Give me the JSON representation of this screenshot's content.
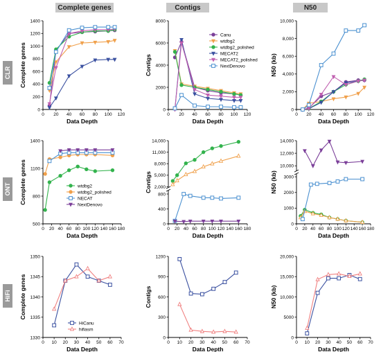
{
  "headers": {
    "col1": "Complete genes",
    "col2": "Contigs",
    "col3": "N50"
  },
  "rows": {
    "clr": "CLR",
    "ont": "ONT",
    "hifi": "HiFi"
  },
  "colors": {
    "Canu": "#7b3f99",
    "wtdbg2": "#f0a04b",
    "wtdbg2_polished": "#33b34d",
    "MECAT2": "#3a50a0",
    "MECAT2_polished": "#c060b0",
    "NextDenovo": "#4a90d0",
    "NECAT": "#4a90d0",
    "HiCanu": "#3a50a0",
    "hifiasm": "#f08080"
  },
  "chart_data": [
    {
      "id": "clr-genes",
      "type": "line",
      "xlabel": "Data Depth",
      "ylabel": "Complete genes",
      "xlim": [
        0,
        120
      ],
      "ylim": [
        0,
        1400
      ],
      "xticks": [
        0,
        20,
        40,
        60,
        80,
        100,
        120
      ],
      "yticks": [
        0,
        200,
        400,
        600,
        800,
        1000,
        1200,
        1400
      ],
      "series": [
        {
          "name": "Canu",
          "x": [
            10,
            20,
            40,
            60,
            80,
            100,
            110
          ],
          "y": [
            60,
            930,
            1200,
            1220,
            1230,
            1240,
            1250
          ],
          "marker": "circle"
        },
        {
          "name": "wtdbg2",
          "x": [
            10,
            20,
            40,
            60,
            80,
            100,
            110
          ],
          "y": [
            300,
            750,
            990,
            1050,
            1060,
            1070,
            1090
          ],
          "marker": "triangle-down"
        },
        {
          "name": "wtdbg2_polished",
          "x": [
            10,
            20,
            40,
            60,
            80,
            100,
            110
          ],
          "y": [
            420,
            950,
            1150,
            1220,
            1240,
            1240,
            1260
          ],
          "marker": "circle"
        },
        {
          "name": "MECAT2",
          "x": [
            10,
            20,
            40,
            60,
            80,
            100,
            110
          ],
          "y": [
            30,
            180,
            530,
            680,
            780,
            790,
            790
          ],
          "marker": "triangle-down"
        },
        {
          "name": "MECAT2_polished",
          "x": [
            10,
            20,
            40,
            60,
            80,
            100,
            110
          ],
          "y": [
            90,
            660,
            1200,
            1240,
            1260,
            1260,
            1270
          ],
          "marker": "triangle-down"
        },
        {
          "name": "NextDenovo",
          "x": [
            10,
            20,
            40,
            60,
            80,
            100,
            110
          ],
          "y": [
            340,
            910,
            1250,
            1290,
            1300,
            1300,
            1300
          ],
          "marker": "square"
        }
      ]
    },
    {
      "id": "clr-contigs",
      "type": "line",
      "xlabel": "Data Depth",
      "ylabel": "Contigs",
      "xlim": [
        0,
        120
      ],
      "ylim": [
        0,
        8000
      ],
      "xticks": [
        0,
        20,
        40,
        60,
        80,
        100,
        120
      ],
      "yticks": [
        0,
        2000,
        4000,
        6000,
        8000
      ],
      "legend": [
        "Canu",
        "wtdbg2",
        "wtdbg2_polished",
        "MECAT2",
        "MECAT2_polished",
        "NextDenovo"
      ],
      "series": [
        {
          "name": "Canu",
          "x": [
            10,
            20,
            40,
            60,
            80,
            100,
            110
          ],
          "y": [
            4700,
            6100,
            2000,
            1700,
            1500,
            1400,
            1300
          ],
          "marker": "circle"
        },
        {
          "name": "wtdbg2",
          "x": [
            10,
            20,
            40,
            60,
            80,
            100,
            110
          ],
          "y": [
            5300,
            2300,
            2100,
            1900,
            1700,
            1500,
            1400
          ],
          "marker": "triangle-down"
        },
        {
          "name": "wtdbg2_polished",
          "x": [
            10,
            20,
            40,
            60,
            80,
            100,
            110
          ],
          "y": [
            5200,
            2200,
            2000,
            1800,
            1600,
            1400,
            1300
          ],
          "marker": "circle"
        },
        {
          "name": "MECAT2",
          "x": [
            10,
            20,
            40,
            60,
            80,
            100,
            110
          ],
          "y": [
            30,
            6300,
            1400,
            1000,
            900,
            800,
            800
          ],
          "marker": "triangle-down"
        },
        {
          "name": "MECAT2_polished",
          "x": [
            10,
            20,
            40,
            60,
            80,
            100,
            110
          ],
          "y": [
            0,
            6000,
            1800,
            1300,
            1200,
            1100,
            1100
          ],
          "marker": "triangle-down"
        },
        {
          "name": "NextDenovo",
          "x": [
            10,
            20,
            40,
            60,
            80,
            100,
            110
          ],
          "y": [
            100,
            1300,
            350,
            250,
            250,
            200,
            200
          ],
          "marker": "square"
        }
      ]
    },
    {
      "id": "clr-n50",
      "type": "line",
      "xlabel": "Data Depth",
      "ylabel": "N50 (kb)",
      "xlim": [
        0,
        120
      ],
      "ylim": [
        0,
        10000
      ],
      "xticks": [
        0,
        20,
        40,
        60,
        80,
        100,
        120
      ],
      "yticks": [
        0,
        2000,
        4000,
        6000,
        8000,
        10000
      ],
      "ytick_labels": [
        "0",
        "2,000",
        "4,000",
        "6,000",
        "8,000",
        "10,000"
      ],
      "series": [
        {
          "name": "Canu",
          "x": [
            10,
            20,
            40,
            60,
            80,
            100,
            110
          ],
          "y": [
            0,
            150,
            1500,
            2000,
            3100,
            3300,
            3300
          ],
          "marker": "circle"
        },
        {
          "name": "wtdbg2",
          "x": [
            10,
            20,
            40,
            60,
            80,
            100,
            110
          ],
          "y": [
            0,
            700,
            900,
            1200,
            1400,
            1800,
            2500
          ],
          "marker": "triangle-down"
        },
        {
          "name": "wtdbg2_polished",
          "x": [
            10,
            20,
            40,
            60,
            80,
            100,
            110
          ],
          "y": [
            0,
            100,
            900,
            2000,
            2800,
            3200,
            3400
          ],
          "marker": "circle"
        },
        {
          "name": "MECAT2",
          "x": [
            10,
            20,
            40,
            60,
            80,
            100,
            110
          ],
          "y": [
            0,
            80,
            800,
            2000,
            3000,
            3200,
            3300
          ],
          "marker": "triangle-down"
        },
        {
          "name": "MECAT2_polished",
          "x": [
            10,
            20,
            40,
            60,
            80,
            100,
            110
          ],
          "y": [
            0,
            100,
            1700,
            3700,
            2800,
            3200,
            3300
          ],
          "marker": "triangle-down"
        },
        {
          "name": "NextDenovo",
          "x": [
            10,
            20,
            40,
            60,
            80,
            100,
            110
          ],
          "y": [
            0,
            500,
            5000,
            6300,
            8900,
            8900,
            9500
          ],
          "marker": "square"
        }
      ]
    },
    {
      "id": "ont-genes",
      "type": "line",
      "xlabel": "Data Depth",
      "ylabel": "Complete genes",
      "xlim": [
        0,
        180
      ],
      "ylim": [
        500,
        1400
      ],
      "xticks": [
        0,
        20,
        40,
        60,
        80,
        100,
        120,
        140,
        160,
        180
      ],
      "yticks": [
        500,
        800,
        1100,
        1400
      ],
      "legend": [
        "wtdbg2",
        "wtdbg2_polished",
        "NECAT",
        "NextDenovo"
      ],
      "series": [
        {
          "name": "wtdbg2",
          "x": [
            5,
            15,
            40,
            60,
            80,
            100,
            120,
            160
          ],
          "y": [
            650,
            950,
            1020,
            1080,
            1120,
            1090,
            1070,
            1080
          ],
          "marker": "circle",
          "color_key": "wtdbg2_polished"
        },
        {
          "name": "wtdbg2_polished",
          "x": [
            5,
            15,
            40,
            60,
            80,
            100,
            120,
            160
          ],
          "y": [
            1040,
            1200,
            1220,
            1240,
            1250,
            1250,
            1250,
            1240
          ],
          "marker": "circle",
          "color_key": "wtdbg2"
        },
        {
          "name": "NECAT",
          "x": [
            15,
            40,
            60,
            80,
            100,
            120,
            160
          ],
          "y": [
            1180,
            1260,
            1270,
            1270,
            1270,
            1270,
            1270
          ],
          "marker": "square"
        },
        {
          "name": "NextDenovo",
          "x": [
            40,
            60,
            80,
            100,
            120,
            160
          ],
          "y": [
            1290,
            1300,
            1300,
            1300,
            1300,
            1300
          ],
          "marker": "triangle-down",
          "color_key": "Canu"
        }
      ]
    },
    {
      "id": "ont-contigs",
      "type": "line",
      "xlabel": "Data Depth",
      "ylabel": "Contigs",
      "xlim": [
        0,
        180
      ],
      "ylim": [
        0,
        14000
      ],
      "xticks": [
        0,
        20,
        40,
        60,
        80,
        100,
        120,
        140,
        160,
        180
      ],
      "yticks_top": [
        2000,
        5000,
        8000,
        11000,
        14000
      ],
      "ytick_labels_top": [
        "2,000",
        "5,000",
        "8,000",
        "11,000",
        "14,000"
      ],
      "yticks_bottom": [
        0,
        400,
        800
      ],
      "axis_break": [
        900,
        1800
      ],
      "series": [
        {
          "name": "wtdbg2",
          "x": [
            10,
            20,
            40,
            60,
            80,
            100,
            120,
            160
          ],
          "y": [
            3500,
            5000,
            8100,
            9000,
            11000,
            12000,
            12600,
            13700
          ],
          "marker": "circle",
          "color_key": "wtdbg2_polished"
        },
        {
          "name": "wtdbg2_polished",
          "x": [
            10,
            20,
            40,
            60,
            80,
            100,
            120,
            160
          ],
          "y": [
            2600,
            3600,
            5200,
            6000,
            7200,
            8000,
            8700,
            10000
          ],
          "marker": "triangle-up",
          "color_key": "wtdbg2"
        },
        {
          "name": "NECAT",
          "x": [
            15,
            35,
            50,
            80,
            100,
            120,
            160
          ],
          "y": [
            80,
            800,
            750,
            700,
            700,
            680,
            700
          ],
          "marker": "square"
        },
        {
          "name": "NextDenovo",
          "x": [
            15,
            35,
            50,
            80,
            100,
            120,
            160
          ],
          "y": [
            70,
            60,
            70,
            70,
            70,
            70,
            70
          ],
          "marker": "triangle-down",
          "color_key": "Canu"
        }
      ]
    },
    {
      "id": "ont-n50",
      "type": "line",
      "xlabel": "Data Depth",
      "ylabel": "N50 (kb)",
      "xlim": [
        0,
        180
      ],
      "xticks": [
        0,
        20,
        40,
        60,
        80,
        100,
        120,
        140,
        160,
        180
      ],
      "yticks_top": [
        10000,
        12000,
        14000
      ],
      "ytick_labels_top": [
        "10,000",
        "12,000",
        "14,000"
      ],
      "yticks_bottom": [
        0,
        1000,
        2000,
        3000
      ],
      "ytick_labels_bottom": [
        "0",
        "1000",
        "2000",
        "3000"
      ],
      "axis_break": [
        3200,
        9200
      ],
      "series": [
        {
          "name": "wtdbg2",
          "x": [
            10,
            20,
            40,
            60,
            80,
            100,
            120,
            160
          ],
          "y": [
            500,
            900,
            700,
            600,
            400,
            300,
            200,
            100
          ],
          "marker": "circle",
          "color_key": "wtdbg2_polished"
        },
        {
          "name": "wtdbg2_polished",
          "x": [
            10,
            20,
            40,
            60,
            80,
            100,
            120,
            160
          ],
          "y": [
            400,
            800,
            650,
            550,
            400,
            300,
            200,
            100
          ],
          "marker": "triangle-up",
          "color_key": "wtdbg2"
        },
        {
          "name": "NECAT",
          "x": [
            15,
            35,
            50,
            80,
            100,
            120,
            160
          ],
          "y": [
            300,
            2500,
            2550,
            2600,
            2700,
            2850,
            2850
          ],
          "marker": "square"
        },
        {
          "name": "NextDenovo",
          "x": [
            20,
            40,
            60,
            80,
            100,
            120,
            160
          ],
          "y": [
            12400,
            10000,
            12500,
            13900,
            10600,
            10500,
            10700
          ],
          "marker": "triangle-down",
          "color_key": "Canu"
        }
      ]
    },
    {
      "id": "hifi-genes",
      "type": "line",
      "xlabel": "Data Depth",
      "ylabel": "Complete genes",
      "xlim": [
        0,
        70
      ],
      "ylim": [
        1330,
        1350
      ],
      "xticks": [
        0,
        10,
        20,
        30,
        40,
        50,
        60,
        70
      ],
      "yticks": [
        1330,
        1335,
        1340,
        1345,
        1350
      ],
      "legend": [
        "HiCanu",
        "hifiasm"
      ],
      "series": [
        {
          "name": "HiCanu",
          "x": [
            10,
            20,
            30,
            40,
            50,
            60
          ],
          "y": [
            1333,
            1344,
            1348,
            1345,
            1344,
            1343
          ],
          "marker": "square"
        },
        {
          "name": "hifiasm",
          "x": [
            10,
            20,
            30,
            40,
            50,
            60
          ],
          "y": [
            1337,
            1344,
            1345,
            1347,
            1344,
            1345
          ],
          "marker": "triangle-up"
        }
      ]
    },
    {
      "id": "hifi-contigs",
      "type": "line",
      "xlabel": "Data Depth",
      "ylabel": "Contigs",
      "xlim": [
        0,
        70
      ],
      "ylim": [
        0,
        1200
      ],
      "xticks": [
        0,
        10,
        20,
        30,
        40,
        50,
        60,
        70
      ],
      "yticks": [
        0,
        300,
        600,
        900,
        1200
      ],
      "ytick_labels": [
        "0",
        "300",
        "600",
        "900",
        "1200"
      ],
      "series": [
        {
          "name": "HiCanu",
          "x": [
            10,
            20,
            30,
            40,
            50,
            60
          ],
          "y": [
            1160,
            650,
            640,
            720,
            820,
            960
          ],
          "marker": "square"
        },
        {
          "name": "hifiasm",
          "x": [
            10,
            20,
            30,
            40,
            50,
            60
          ],
          "y": [
            490,
            110,
            90,
            80,
            90,
            80
          ],
          "marker": "triangle-up"
        }
      ]
    },
    {
      "id": "hifi-n50",
      "type": "line",
      "xlabel": "Data Depth",
      "ylabel": "N50 (kb)",
      "xlim": [
        0,
        70
      ],
      "ylim": [
        0,
        20000
      ],
      "xticks": [
        0,
        10,
        20,
        30,
        40,
        50,
        60,
        70
      ],
      "yticks": [
        0,
        5000,
        10000,
        15000,
        20000
      ],
      "ytick_labels": [
        "0",
        "5000",
        "10,000",
        "15,000",
        "20,000"
      ],
      "series": [
        {
          "name": "HiCanu",
          "x": [
            10,
            20,
            30,
            40,
            50,
            60
          ],
          "y": [
            1000,
            11000,
            14600,
            14600,
            15400,
            14400
          ],
          "marker": "square"
        },
        {
          "name": "hifiasm",
          "x": [
            10,
            20,
            30,
            40,
            50,
            60
          ],
          "y": [
            2300,
            14300,
            15500,
            15700,
            15100,
            15700
          ],
          "marker": "triangle-up"
        }
      ]
    }
  ]
}
